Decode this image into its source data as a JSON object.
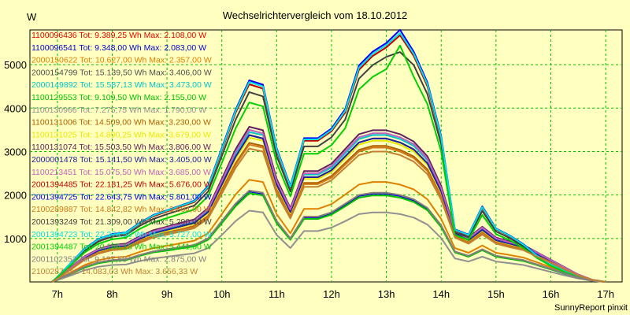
{
  "chart_data": {
    "type": "line",
    "title": "Wechselrichtervergleich vom 18.10.2012",
    "ylabel": "W",
    "footer": "SunnyReport pinxit",
    "xlim": [
      6.5,
      17.3
    ],
    "ylim": [
      0,
      5800
    ],
    "x_ticks": [
      7,
      8,
      9,
      10,
      11,
      12,
      13,
      14,
      15,
      16,
      17
    ],
    "x_tick_labels": [
      "7h",
      "8h",
      "9h",
      "10h",
      "11h",
      "12h",
      "13h",
      "14h",
      "15h",
      "16h",
      "17h"
    ],
    "y_ticks": [
      1000,
      2000,
      3000,
      4000,
      5000
    ],
    "y_tick_labels": [
      "1000",
      "2000",
      "3000",
      "4000",
      "5000"
    ],
    "grid": true,
    "legend_position": "top-left",
    "x": [
      6.9,
      7.0,
      7.25,
      7.5,
      7.75,
      8.0,
      8.25,
      8.5,
      8.75,
      9.0,
      9.25,
      9.5,
      9.75,
      10.0,
      10.25,
      10.5,
      10.75,
      11.0,
      11.25,
      11.5,
      11.75,
      12.0,
      12.25,
      12.5,
      12.75,
      13.0,
      13.25,
      13.5,
      13.75,
      14.0,
      14.25,
      14.5,
      14.75,
      15.0,
      15.25,
      15.5,
      15.75,
      16.0,
      16.25,
      16.5,
      16.75,
      17.0
    ],
    "series": [
      {
        "name": "1100096436 Tot: 9.389,25 Wh Max: 2.108,00 W",
        "color": "#e00000",
        "values": [
          0,
          50,
          200,
          350,
          450,
          500,
          520,
          620,
          700,
          750,
          800,
          850,
          1000,
          1400,
          1800,
          2100,
          2050,
          1400,
          1000,
          1500,
          1500,
          1600,
          1800,
          2000,
          2050,
          2050,
          2000,
          1900,
          1700,
          1300,
          700,
          600,
          750,
          600,
          550,
          500,
          400,
          300,
          200,
          100,
          30,
          0
        ]
      },
      {
        "name": "1100096541 Tot: 9.348,00 Wh Max: 2.083,00 W",
        "color": "#0000d0",
        "values": [
          0,
          50,
          190,
          340,
          440,
          490,
          510,
          610,
          690,
          740,
          790,
          840,
          980,
          1380,
          1780,
          2080,
          2030,
          1380,
          990,
          1480,
          1480,
          1580,
          1780,
          1980,
          2030,
          2030,
          1980,
          1880,
          1680,
          1280,
          690,
          590,
          740,
          590,
          540,
          490,
          390,
          290,
          190,
          90,
          30,
          0
        ]
      },
      {
        "name": "2000150622 Tot: 10.627,00 Wh Max: 2.357,00 W",
        "color": "#e08000",
        "values": [
          0,
          60,
          220,
          390,
          500,
          560,
          580,
          690,
          780,
          830,
          890,
          950,
          1120,
          1560,
          2010,
          2350,
          2300,
          1560,
          1120,
          1680,
          1680,
          1790,
          2010,
          2240,
          2300,
          2300,
          2240,
          2130,
          1900,
          1450,
          780,
          670,
          840,
          670,
          620,
          560,
          450,
          340,
          220,
          110,
          35,
          0
        ]
      },
      {
        "name": "2000154799 Tot: 15.139,50 Wh Max: 3.406,00 W",
        "color": "#505050",
        "values": [
          0,
          80,
          320,
          560,
          720,
          800,
          830,
          990,
          1120,
          1200,
          1280,
          1360,
          1610,
          2240,
          2880,
          3380,
          3300,
          2240,
          1610,
          2410,
          2410,
          2570,
          2890,
          3210,
          3300,
          3300,
          3210,
          3050,
          2730,
          2080,
          1120,
          960,
          1200,
          960,
          880,
          800,
          640,
          480,
          320,
          160,
          50,
          0
        ]
      },
      {
        "name": "2000149892 Tot: 15.587,13 Wh Max: 3.473,00 W",
        "color": "#00c8c8",
        "values": [
          0,
          85,
          330,
          570,
          740,
          820,
          850,
          1020,
          1150,
          1230,
          1310,
          1400,
          1650,
          2300,
          2950,
          3450,
          3380,
          2300,
          1650,
          2470,
          2470,
          2630,
          2960,
          3290,
          3380,
          3380,
          3290,
          3130,
          2800,
          2140,
          1150,
          990,
          1230,
          990,
          900,
          820,
          660,
          490,
          330,
          160,
          50,
          0
        ]
      },
      {
        "name": "1100129553 Tot: 9.109,50 Wh Max: 2.155,00 W",
        "color": "#00c000",
        "values": [
          0,
          50,
          190,
          330,
          430,
          480,
          500,
          600,
          680,
          720,
          770,
          820,
          970,
          1350,
          1740,
          2040,
          1990,
          1350,
          970,
          1450,
          1450,
          1550,
          1740,
          1940,
          1990,
          1990,
          1940,
          1840,
          1650,
          1260,
          680,
          580,
          730,
          580,
          530,
          480,
          390,
          290,
          190,
          100,
          30,
          0
        ]
      },
      {
        "name": "1100130966 Tot: 7.275,75 Wh Max: 1.790,00 W",
        "color": "#909090",
        "values": [
          0,
          40,
          150,
          270,
          350,
          390,
          400,
          480,
          540,
          580,
          620,
          660,
          780,
          1080,
          1400,
          1640,
          1600,
          1080,
          780,
          1170,
          1170,
          1250,
          1400,
          1560,
          1600,
          1600,
          1560,
          1480,
          1320,
          1010,
          540,
          470,
          580,
          470,
          430,
          390,
          310,
          230,
          150,
          80,
          25,
          0
        ]
      },
      {
        "name": "1100131006 Tot: 14.509,00 Wh Max: 3.230,00 W",
        "color": "#b06000",
        "values": [
          0,
          75,
          300,
          530,
          680,
          760,
          790,
          940,
          1060,
          1140,
          1210,
          1290,
          1520,
          2120,
          2730,
          3200,
          3130,
          2120,
          1520,
          2280,
          2280,
          2440,
          2740,
          3040,
          3130,
          3130,
          3040,
          2890,
          2590,
          1970,
          1060,
          910,
          1140,
          910,
          830,
          760,
          610,
          460,
          300,
          150,
          45,
          0
        ]
      },
      {
        "name": "1100131025 Tot: 14.890,25 Wh Max: 3.679,00 W",
        "color": "#e8e800",
        "values": [
          0,
          80,
          310,
          550,
          700,
          790,
          820,
          980,
          1100,
          1180,
          1260,
          1340,
          1580,
          2200,
          2830,
          3320,
          3250,
          2200,
          1580,
          2370,
          2370,
          2530,
          2840,
          3160,
          3250,
          3250,
          3160,
          3000,
          2690,
          2050,
          1100,
          950,
          1180,
          950,
          870,
          790,
          630,
          470,
          310,
          160,
          50,
          0
        ]
      },
      {
        "name": "1100131074 Tot: 15.503,50 Wh Max: 3.806,00 W",
        "color": "#602060",
        "values": [
          0,
          85,
          340,
          590,
          760,
          850,
          880,
          1050,
          1190,
          1270,
          1360,
          1440,
          1700,
          2370,
          3050,
          3570,
          3490,
          2370,
          1700,
          2550,
          2550,
          2720,
          3060,
          3400,
          3490,
          3490,
          3400,
          3230,
          2890,
          2210,
          1190,
          1020,
          1270,
          1020,
          930,
          850,
          680,
          510,
          340,
          170,
          50,
          0
        ]
      },
      {
        "name": "2000001478 Tot: 15.141,50 Wh Max: 3.405,00 W",
        "color": "#2020a0",
        "values": [
          0,
          80,
          320,
          560,
          720,
          800,
          830,
          990,
          1120,
          1200,
          1280,
          1360,
          1610,
          2240,
          2880,
          3380,
          3300,
          2240,
          1610,
          2410,
          2410,
          2570,
          2890,
          3210,
          3300,
          3300,
          3210,
          3050,
          2730,
          2080,
          1120,
          960,
          1200,
          960,
          880,
          800,
          640,
          480,
          320,
          160,
          50,
          0
        ]
      },
      {
        "name": "1100213451 Tot: 15.075,50 Wh Max: 3.685,00 W",
        "color": "#c060c0",
        "values": [
          0,
          85,
          330,
          580,
          750,
          830,
          860,
          1030,
          1160,
          1250,
          1330,
          1410,
          1670,
          2320,
          2990,
          3500,
          3420,
          2320,
          1670,
          2500,
          2500,
          2670,
          3000,
          3330,
          3420,
          3420,
          3330,
          3170,
          2830,
          2160,
          1160,
          1000,
          1250,
          1000,
          910,
          830,
          670,
          500,
          330,
          170,
          50,
          0
        ]
      },
      {
        "name": "2001394485 Tot: 22.181,25 Wh Max: 5.676,00 W",
        "color": "#c00000",
        "values": [
          0,
          110,
          430,
          750,
          970,
          1080,
          1120,
          1340,
          1510,
          1620,
          1730,
          1840,
          2170,
          3020,
          3890,
          4550,
          4450,
          3020,
          2170,
          3250,
          3250,
          3470,
          3900,
          4880,
          5200,
          5400,
          5676,
          5200,
          4500,
          3300,
          1190,
          1070,
          1700,
          1210,
          1050,
          850,
          600,
          400,
          250,
          120,
          40,
          0
        ]
      },
      {
        "name": "2001394725 Tot: 22.643,75 Wh Max: 5.801,00 W",
        "color": "#0000ff",
        "values": [
          0,
          115,
          440,
          770,
          990,
          1100,
          1140,
          1360,
          1540,
          1650,
          1760,
          1870,
          2210,
          3080,
          3960,
          4640,
          4540,
          3080,
          2210,
          3310,
          3310,
          3530,
          3980,
          4980,
          5300,
          5500,
          5801,
          5300,
          4590,
          3360,
          1210,
          1090,
          1740,
          1230,
          1070,
          870,
          610,
          410,
          260,
          120,
          40,
          0
        ]
      },
      {
        "name": "2100289887 Tot: 14.842,82 Wh Max: 3.604,00 W",
        "color": "#d07818",
        "values": [
          0,
          75,
          300,
          520,
          670,
          750,
          780,
          930,
          1050,
          1120,
          1200,
          1270,
          1500,
          2090,
          2690,
          3160,
          3090,
          2090,
          1500,
          2250,
          2250,
          2400,
          2700,
          3000,
          3090,
          3090,
          3000,
          2850,
          2550,
          1950,
          1050,
          900,
          1120,
          900,
          820,
          750,
          600,
          450,
          300,
          150,
          45,
          0
        ]
      },
      {
        "name": "2001393249 Tot: 21.309,00 Wh Max: 5.290,00 W",
        "color": "#404040",
        "values": [
          0,
          105,
          410,
          720,
          930,
          1040,
          1080,
          1290,
          1450,
          1560,
          1660,
          1760,
          2080,
          2900,
          3730,
          4370,
          4270,
          2900,
          2080,
          3120,
          3120,
          3330,
          3740,
          4680,
          4990,
          5180,
          5290,
          4990,
          4320,
          3170,
          1140,
          1030,
          1630,
          1160,
          1010,
          820,
          580,
          390,
          240,
          110,
          35,
          0
        ]
      },
      {
        "name": "2001394723 Tot: 22.274,50 Wh Max: 5.727,00 W",
        "color": "#00e0e0",
        "values": [
          0,
          112,
          435,
          760,
          980,
          1090,
          1130,
          1350,
          1530,
          1640,
          1750,
          1860,
          2190,
          3050,
          3930,
          4600,
          4500,
          3050,
          2190,
          3280,
          3280,
          3500,
          3940,
          4930,
          5250,
          5450,
          5727,
          5250,
          4550,
          3330,
          1200,
          1080,
          1720,
          1220,
          1060,
          860,
          600,
          400,
          250,
          120,
          40,
          0
        ]
      },
      {
        "name": "2001394487 Tot: 20.186,13 Wh Max: 5.441,00 W",
        "color": "#00d000",
        "values": [
          0,
          100,
          390,
          680,
          880,
          980,
          1020,
          1220,
          1370,
          1470,
          1570,
          1670,
          1970,
          2740,
          3530,
          4130,
          4040,
          2740,
          1970,
          2950,
          2950,
          3150,
          3540,
          4430,
          4720,
          4900,
          5441,
          4720,
          4090,
          3000,
          1080,
          970,
          1540,
          1100,
          960,
          780,
          550,
          370,
          230,
          110,
          35,
          0
        ]
      },
      {
        "name": "2001102352 Tot: 9.127,50 Wh Max: 2.875,00 W",
        "color": "#808080",
        "values": [
          0,
          55,
          200,
          350,
          450,
          500,
          520,
          620,
          700,
          750,
          800,
          850,
          1000,
          1400,
          1800,
          2100,
          2050,
          1400,
          1000,
          1500,
          1500,
          1600,
          1800,
          2000,
          2050,
          2050,
          2000,
          1900,
          1700,
          1300,
          700,
          600,
          750,
          600,
          550,
          500,
          400,
          300,
          200,
          100,
          30,
          0
        ]
      },
      {
        "name": "2100287 Tot: 14.083,03 Wh Max: 3.656,33 W",
        "color": "#c08030",
        "values": [
          0,
          72,
          290,
          510,
          650,
          730,
          760,
          900,
          1020,
          1090,
          1160,
          1240,
          1460,
          2030,
          2620,
          3070,
          3000,
          2030,
          1460,
          2190,
          2190,
          2340,
          2630,
          2920,
          3000,
          3000,
          2920,
          2770,
          2480,
          1890,
          1020,
          880,
          1090,
          880,
          800,
          730,
          580,
          440,
          290,
          150,
          45,
          0
        ]
      }
    ]
  }
}
